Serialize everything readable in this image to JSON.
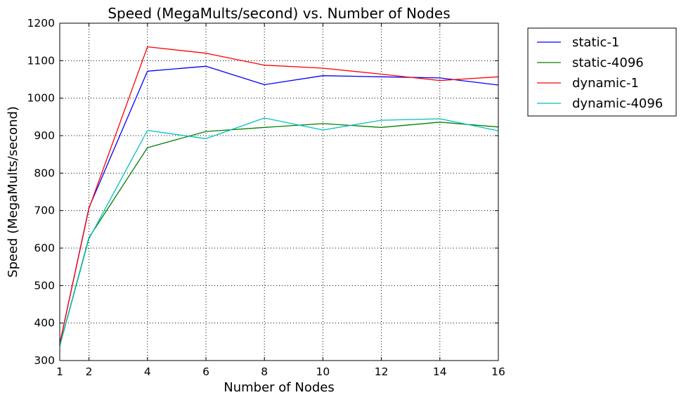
{
  "chart_data": {
    "type": "line",
    "title": "Speed (MegaMults/second) vs. Number of Nodes",
    "xlabel": "Number of Nodes",
    "ylabel": "Speed (MegaMults/second)",
    "x": [
      1,
      2,
      4,
      6,
      8,
      10,
      12,
      14,
      16
    ],
    "xticks": [
      1,
      2,
      4,
      6,
      8,
      10,
      12,
      14,
      16
    ],
    "yticks": [
      300,
      400,
      500,
      600,
      700,
      800,
      900,
      1000,
      1100,
      1200
    ],
    "xlim": [
      1,
      16
    ],
    "ylim": [
      300,
      1200
    ],
    "grid": true,
    "legend_position": "outside-top-right",
    "series": [
      {
        "name": "static-1",
        "color": "#0000ff",
        "values": [
          345,
          708,
          1072,
          1085,
          1036,
          1060,
          1057,
          1054,
          1035
        ]
      },
      {
        "name": "static-4096",
        "color": "#008000",
        "values": [
          340,
          628,
          868,
          911,
          922,
          932,
          922,
          936,
          923
        ]
      },
      {
        "name": "dynamic-1",
        "color": "#ff0000",
        "values": [
          345,
          706,
          1137,
          1120,
          1088,
          1080,
          1064,
          1047,
          1057
        ]
      },
      {
        "name": "dynamic-4096",
        "color": "#00bfbf",
        "values": [
          338,
          625,
          914,
          892,
          947,
          915,
          941,
          945,
          913
        ]
      }
    ]
  }
}
